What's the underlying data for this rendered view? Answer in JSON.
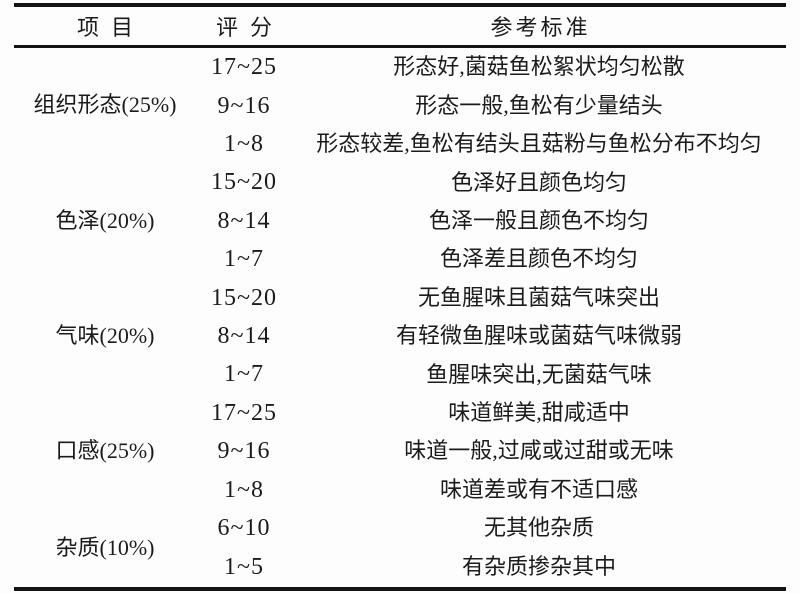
{
  "table": {
    "columns": [
      "项目",
      "评分",
      "参考标准"
    ],
    "groups": [
      {
        "item": "组织形态(25%)",
        "rows": [
          {
            "score": "17~25",
            "standard": "形态好,菌菇鱼松絮状均匀松散"
          },
          {
            "score": "9~16",
            "standard": "形态一般,鱼松有少量结头"
          },
          {
            "score": "1~8",
            "standard": "形态较差,鱼松有结头且菇粉与鱼松分布不均匀"
          }
        ]
      },
      {
        "item": "色泽(20%)",
        "rows": [
          {
            "score": "15~20",
            "standard": "色泽好且颜色均匀"
          },
          {
            "score": "8~14",
            "standard": "色泽一般且颜色不均匀"
          },
          {
            "score": "1~7",
            "standard": "色泽差且颜色不均匀"
          }
        ]
      },
      {
        "item": "气味(20%)",
        "rows": [
          {
            "score": "15~20",
            "standard": "无鱼腥味且菌菇气味突出"
          },
          {
            "score": "8~14",
            "standard": "有轻微鱼腥味或菌菇气味微弱"
          },
          {
            "score": "1~7",
            "standard": "鱼腥味突出,无菌菇气味"
          }
        ]
      },
      {
        "item": "口感(25%)",
        "rows": [
          {
            "score": "17~25",
            "standard": "味道鲜美,甜咸适中"
          },
          {
            "score": "9~16",
            "standard": "味道一般,过咸或过甜或无味"
          },
          {
            "score": "1~8",
            "standard": "味道差或有不适口感"
          }
        ]
      },
      {
        "item": "杂质(10%)",
        "rows": [
          {
            "score": "6~10",
            "standard": "无其他杂质"
          },
          {
            "score": "1~5",
            "standard": "有杂质掺杂其中"
          }
        ]
      }
    ],
    "colors": {
      "rule": "#141414",
      "text": "#1b1b1b",
      "background": "#fdfdfd"
    }
  }
}
